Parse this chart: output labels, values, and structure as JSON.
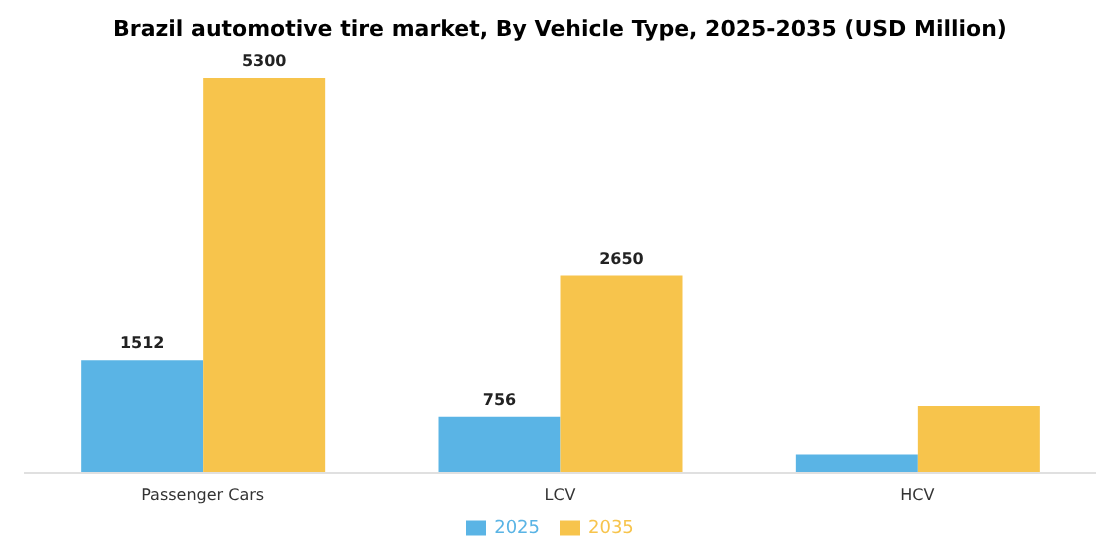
{
  "chart_data": {
    "type": "bar",
    "title": "Brazil automotive tire market, By Vehicle Type, 2025-2035 (USD Million)",
    "categories": [
      "Passenger Cars",
      "LCV",
      "HCV"
    ],
    "series": [
      {
        "name": "2025",
        "color": "#5ab4e5",
        "values": [
          1512,
          756,
          250
        ],
        "value_labels": [
          "1512",
          "756",
          null
        ]
      },
      {
        "name": "2035",
        "color": "#f7c44c",
        "values": [
          5300,
          2650,
          900
        ],
        "value_labels": [
          "5300",
          "2650",
          null
        ]
      }
    ],
    "legend": "bottom",
    "grid": false
  }
}
